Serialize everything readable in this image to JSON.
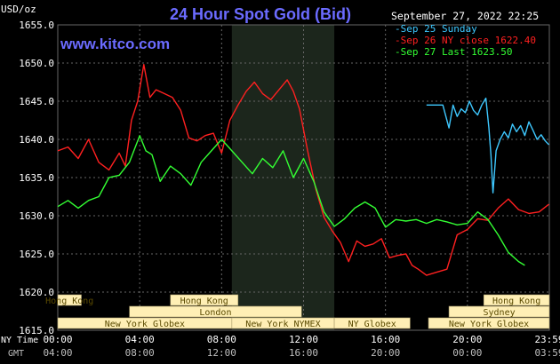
{
  "title": "24 Hour Spot Gold (Bid)",
  "watermark": "www.kitco.com",
  "units_label": "USD/oz",
  "timestamp": "September 27, 2022 22:25",
  "colors": {
    "background": "#000000",
    "grid": "#666666",
    "axis_text": "#ffffff",
    "title": "#6b6bff",
    "watermark": "#6b6bff",
    "shaded_region": "#1c261c",
    "session_bar": "#ffefb5",
    "session_text": "#5a4a00",
    "time_row_text": "#ffffff",
    "gmt_row_text": "#bfbfbf"
  },
  "chart_data": {
    "type": "line",
    "title": "24 Hour Spot Gold (Bid)",
    "ylabel": "USD/oz",
    "xlabel": "",
    "ylim": [
      1615,
      1655
    ],
    "y_ticks": [
      1615,
      1620,
      1625,
      1630,
      1635,
      1640,
      1645,
      1650,
      1655
    ],
    "y_tick_labels": [
      "1615.0",
      "1620.0",
      "1625.0",
      "1630.0",
      "1635.0",
      "1640.0",
      "1645.0",
      "1650.0",
      "1655.0"
    ],
    "x_range_hours": [
      0,
      24
    ],
    "x_ticks_hours": [
      0,
      4,
      8,
      12,
      16,
      20,
      24
    ],
    "x_tick_labels_ny": [
      "00:00",
      "04:00",
      "08:00",
      "12:00",
      "16:00",
      "20:00",
      "23:59"
    ],
    "x_tick_labels_gmt": [
      "04:00",
      "08:00",
      "12:00",
      "16:00",
      "20:00",
      "00:00",
      "03:59"
    ],
    "row_labels": {
      "ny": "NY Time",
      "gmt": "GMT"
    },
    "grid": true,
    "shaded_period_hours": [
      8.5,
      13.5
    ],
    "legend_position": "top-right",
    "series": [
      {
        "name": "Sep 25 Sunday",
        "legend_label": "-Sep 25 Sunday",
        "color": "#3ec8ff",
        "x": [
          18,
          18.8,
          18.9,
          19.1,
          19.3,
          19.5,
          19.7,
          19.9,
          20.1,
          20.3,
          20.5,
          20.7,
          20.9,
          21.05,
          21.15,
          21.25,
          21.4,
          21.6,
          21.8,
          22,
          22.2,
          22.4,
          22.6,
          22.8,
          23,
          23.2,
          23.4,
          23.6,
          23.8,
          23.98
        ],
        "values": [
          1644.5,
          1644.5,
          1643.5,
          1641.5,
          1644.5,
          1643.0,
          1644.0,
          1643.5,
          1645.0,
          1643.8,
          1643.2,
          1644.5,
          1645.4,
          1641.5,
          1638.0,
          1633.0,
          1638.5,
          1640.0,
          1641.0,
          1640.2,
          1642.0,
          1641.0,
          1641.8,
          1640.5,
          1642.3,
          1641.2,
          1640.0,
          1640.6,
          1639.8,
          1639.3
        ]
      },
      {
        "name": "Sep 26 NY close 1622.40",
        "legend_label": "-Sep 26 NY close 1622.40",
        "color": "#ff2020",
        "x": [
          0,
          0.5,
          1,
          1.5,
          2,
          2.5,
          3,
          3.3,
          3.6,
          3.9,
          4.2,
          4.5,
          4.8,
          5.2,
          5.6,
          6,
          6.4,
          6.8,
          7.2,
          7.6,
          8,
          8.4,
          8.8,
          9.2,
          9.6,
          10,
          10.4,
          10.8,
          11.2,
          11.5,
          11.8,
          12.2,
          12.6,
          13,
          13.4,
          13.8,
          14.2,
          14.6,
          15,
          15.4,
          15.8,
          16.2,
          16.6,
          17,
          17.3,
          17.6,
          18,
          18.5,
          19,
          19.5,
          20,
          20.5,
          21,
          21.5,
          22,
          22.5,
          23,
          23.5,
          23.98
        ],
        "values": [
          1638.5,
          1639.0,
          1637.5,
          1640.0,
          1637.0,
          1636.0,
          1638.2,
          1636.5,
          1642.5,
          1645.0,
          1649.8,
          1645.5,
          1646.5,
          1646.0,
          1645.5,
          1643.8,
          1640.2,
          1639.8,
          1640.5,
          1640.8,
          1638.2,
          1642.5,
          1644.5,
          1646.3,
          1647.5,
          1646.0,
          1645.2,
          1646.5,
          1647.8,
          1646.3,
          1644.0,
          1638.5,
          1633.5,
          1629.8,
          1628.0,
          1626.5,
          1624.0,
          1626.7,
          1626.0,
          1626.3,
          1627.0,
          1624.5,
          1624.8,
          1625.0,
          1623.5,
          1623.0,
          1622.2,
          1622.6,
          1623.0,
          1627.5,
          1628.2,
          1629.6,
          1629.4,
          1631.0,
          1632.2,
          1630.8,
          1630.3,
          1630.5,
          1631.5
        ]
      },
      {
        "name": "Sep 27 Last 1623.50",
        "legend_label": "-Sep 27 Last 1623.50",
        "color": "#33ff33",
        "x": [
          0,
          0.5,
          1,
          1.5,
          2,
          2.5,
          3,
          3.5,
          4,
          4.3,
          4.6,
          5,
          5.5,
          6,
          6.5,
          7,
          7.5,
          8,
          8.5,
          9,
          9.5,
          10,
          10.5,
          11,
          11.5,
          12,
          12.5,
          13,
          13.5,
          14,
          14.5,
          15,
          15.5,
          16,
          16.5,
          17,
          17.5,
          18,
          18.5,
          19,
          19.5,
          20,
          20.5,
          21,
          21.5,
          22,
          22.5,
          22.8
        ],
        "values": [
          1631.2,
          1632.0,
          1631.0,
          1632.0,
          1632.5,
          1635.0,
          1635.3,
          1637.0,
          1640.5,
          1638.5,
          1638.0,
          1634.5,
          1636.5,
          1635.5,
          1634.0,
          1637.0,
          1638.5,
          1640.0,
          1638.5,
          1637.0,
          1635.5,
          1637.5,
          1636.3,
          1638.5,
          1635.0,
          1637.5,
          1634.5,
          1630.5,
          1628.6,
          1629.6,
          1631.0,
          1631.8,
          1631.0,
          1628.5,
          1629.5,
          1629.3,
          1629.5,
          1629.0,
          1629.5,
          1629.2,
          1628.8,
          1629.0,
          1630.5,
          1629.5,
          1627.5,
          1625.2,
          1624.0,
          1623.5
        ]
      }
    ],
    "session_bars": [
      {
        "label": "Hong Kong",
        "row": 1,
        "start": 0,
        "end": 1.15
      },
      {
        "label": "Hong Kong",
        "row": 1,
        "start": 5.5,
        "end": 8.8
      },
      {
        "label": "London",
        "row": 2,
        "start": 3.5,
        "end": 11.9
      },
      {
        "label": "New York Globex",
        "row": 3,
        "start": 0,
        "end": 8.5
      },
      {
        "label": "New York NYMEX",
        "row": 3,
        "start": 8.5,
        "end": 13.5
      },
      {
        "label": "NY Globex",
        "row": 3,
        "start": 13.5,
        "end": 17.2
      },
      {
        "label": "Hong Kong",
        "row": 1,
        "start": 20.8,
        "end": 24
      },
      {
        "label": "Sydney",
        "row": 2,
        "start": 19.1,
        "end": 24
      },
      {
        "label": "New York Globex",
        "row": 3,
        "start": 18.1,
        "end": 24
      }
    ]
  }
}
